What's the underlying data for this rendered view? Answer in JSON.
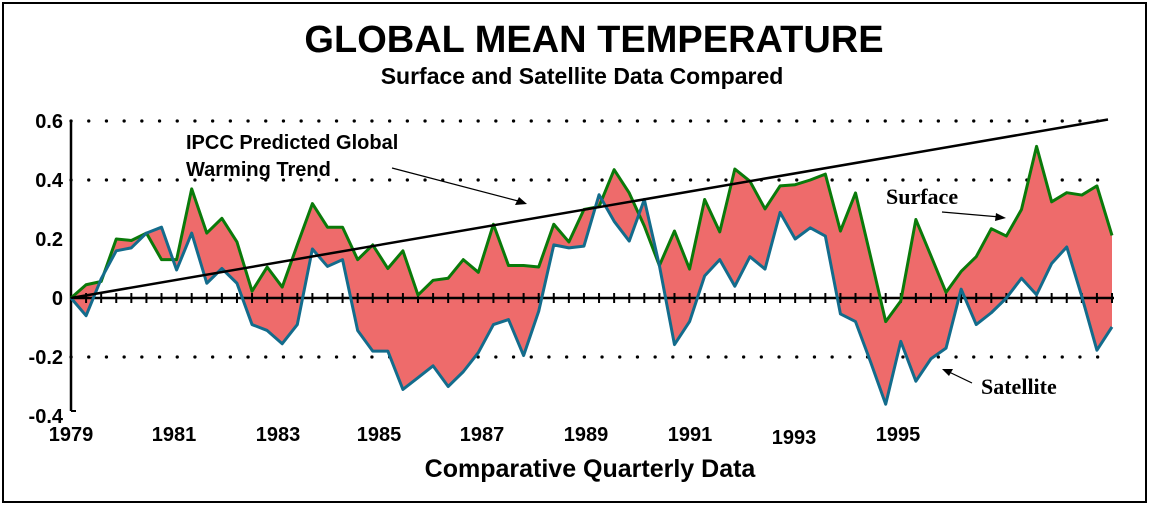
{
  "chart_data": {
    "type": "line",
    "title": "GLOBAL MEAN TEMPERATURE",
    "subtitle": "Surface and Satellite Data Compared",
    "xlabel": "Comparative Quarterly Data",
    "ylabel": "",
    "ylim": [
      -0.4,
      0.6
    ],
    "yticks": [
      {
        "value": 0.6,
        "label": "0.6"
      },
      {
        "value": 0.4,
        "label": "0.4"
      },
      {
        "value": 0.2,
        "label": "0.2"
      },
      {
        "value": 0,
        "label": "0"
      },
      {
        "value": -0.2,
        "label": "-0.2"
      },
      {
        "value": -0.4,
        "label": "-0.4"
      }
    ],
    "gridlines": {
      "style": "dotted",
      "values": [
        0.6,
        0.4,
        -0.2
      ]
    },
    "xticks": [
      {
        "index": 0,
        "label": "1979"
      },
      {
        "index": 7,
        "label": "1981"
      },
      {
        "index": 15,
        "label": "1983"
      },
      {
        "index": 24,
        "label": "1985"
      },
      {
        "index": 32,
        "label": "1987"
      },
      {
        "index": 40,
        "label": "1989"
      },
      {
        "index": 47,
        "label": "1991"
      },
      {
        "index": 56,
        "label": "1993"
      },
      {
        "index": 63,
        "label": "1995"
      }
    ],
    "x_start": "1979 Q1",
    "x_step": "quarter",
    "n_points": 70,
    "series": [
      {
        "name": "Surface",
        "color": "#0a7a0a",
        "values": [
          0,
          0.045,
          0.056,
          0.2,
          0.195,
          0.22,
          0.13,
          0.13,
          0.37,
          0.22,
          0.27,
          0.19,
          0.023,
          0.105,
          0.037,
          0.18,
          0.32,
          0.24,
          0.24,
          0.13,
          0.18,
          0.1,
          0.16,
          0.01,
          0.06,
          0.067,
          0.13,
          0.087,
          0.25,
          0.11,
          0.11,
          0.105,
          0.25,
          0.19,
          0.3,
          0.31,
          0.435,
          0.356,
          0.244,
          0.11,
          0.227,
          0.098,
          0.334,
          0.224,
          0.437,
          0.396,
          0.302,
          0.38,
          0.384,
          0.4,
          0.42,
          0.227,
          0.356,
          0.14,
          -0.08,
          -0.01,
          0.266,
          0.143,
          0.019,
          0.09,
          0.14,
          0.235,
          0.21,
          0.3,
          0.514,
          0.326,
          0.357,
          0.349,
          0.38,
          0.212
        ]
      },
      {
        "name": "Satellite",
        "color": "#136c8c",
        "values": [
          0,
          -0.06,
          0.065,
          0.16,
          0.17,
          0.22,
          0.24,
          0.095,
          0.22,
          0.05,
          0.1,
          0.05,
          -0.09,
          -0.11,
          -0.155,
          -0.09,
          0.166,
          0.107,
          0.13,
          -0.11,
          -0.18,
          -0.18,
          -0.31,
          -0.27,
          -0.23,
          -0.3,
          -0.25,
          -0.185,
          -0.09,
          -0.073,
          -0.195,
          -0.045,
          0.18,
          0.17,
          0.176,
          0.35,
          0.26,
          0.193,
          0.334,
          0.11,
          -0.158,
          -0.08,
          0.075,
          0.13,
          0.04,
          0.14,
          0.098,
          0.29,
          0.2,
          0.238,
          0.21,
          -0.054,
          -0.08,
          -0.217,
          -0.36,
          -0.147,
          -0.282,
          -0.206,
          -0.17,
          0.03,
          -0.09,
          -0.05,
          0.0,
          0.067,
          0.011,
          0.117,
          0.173,
          0.005,
          -0.177,
          -0.098
        ]
      },
      {
        "name": "IPCC Predicted Global Warming Trend",
        "color": "#000000",
        "type": "trend-line",
        "start": {
          "index": 0,
          "value": 0
        },
        "end": {
          "index": 69,
          "value": 0.605
        }
      }
    ],
    "fill_between": {
      "series": [
        "Surface",
        "Satellite"
      ],
      "color": "#ee6b6b"
    },
    "annotations": [
      {
        "text_lines": [
          "IPCC Predicted Global",
          "Warming Trend"
        ],
        "target": "IPCC trend line",
        "arrow": true
      },
      {
        "text": "Surface",
        "target": "Surface series",
        "arrow": true
      },
      {
        "text": "Satellite",
        "target": "Satellite series",
        "arrow": true
      }
    ],
    "legend": "none"
  }
}
